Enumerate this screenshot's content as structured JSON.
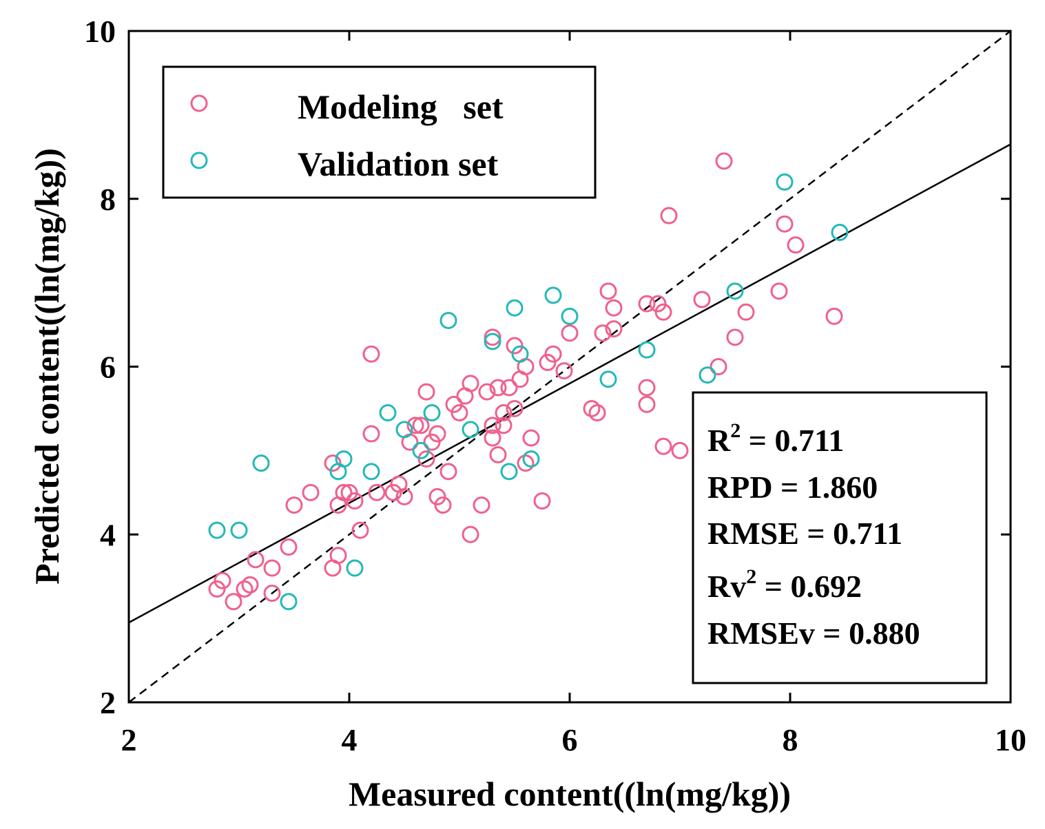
{
  "chart_data": {
    "type": "scatter",
    "title": "",
    "xlabel": "Measured content((ln(mg/kg))",
    "ylabel": "Predicted content((ln(mg/kg))",
    "xlim": [
      2,
      10
    ],
    "ylim": [
      2,
      10
    ],
    "xticks": [
      2,
      4,
      6,
      8,
      10
    ],
    "yticks": [
      2,
      4,
      6,
      8,
      10
    ],
    "grid": false,
    "legend_position": "top-left",
    "series": [
      {
        "name": "Modeling   set",
        "color": "#f0608c",
        "points": [
          [
            2.8,
            3.35
          ],
          [
            2.85,
            3.45
          ],
          [
            2.95,
            3.2
          ],
          [
            3.05,
            3.35
          ],
          [
            3.1,
            3.4
          ],
          [
            3.15,
            3.7
          ],
          [
            3.3,
            3.6
          ],
          [
            3.3,
            3.3
          ],
          [
            3.45,
            3.85
          ],
          [
            3.5,
            4.35
          ],
          [
            3.65,
            4.5
          ],
          [
            3.85,
            4.85
          ],
          [
            3.85,
            3.6
          ],
          [
            3.9,
            3.75
          ],
          [
            3.9,
            4.35
          ],
          [
            3.95,
            4.5
          ],
          [
            4.0,
            4.5
          ],
          [
            4.05,
            4.4
          ],
          [
            4.1,
            4.05
          ],
          [
            4.2,
            5.2
          ],
          [
            4.2,
            6.15
          ],
          [
            4.25,
            4.5
          ],
          [
            4.4,
            4.5
          ],
          [
            4.45,
            4.6
          ],
          [
            4.5,
            4.45
          ],
          [
            4.55,
            5.1
          ],
          [
            4.6,
            5.3
          ],
          [
            4.65,
            5.3
          ],
          [
            4.7,
            5.7
          ],
          [
            4.7,
            4.9
          ],
          [
            4.75,
            5.1
          ],
          [
            4.8,
            5.2
          ],
          [
            4.8,
            4.45
          ],
          [
            4.85,
            4.35
          ],
          [
            4.9,
            4.75
          ],
          [
            4.95,
            5.55
          ],
          [
            5.0,
            5.45
          ],
          [
            5.05,
            5.65
          ],
          [
            5.1,
            5.8
          ],
          [
            5.1,
            4.0
          ],
          [
            5.2,
            4.35
          ],
          [
            5.25,
            5.7
          ],
          [
            5.3,
            5.15
          ],
          [
            5.3,
            5.3
          ],
          [
            5.3,
            6.35
          ],
          [
            5.35,
            4.95
          ],
          [
            5.35,
            5.75
          ],
          [
            5.4,
            5.45
          ],
          [
            5.4,
            5.3
          ],
          [
            5.45,
            5.75
          ],
          [
            5.5,
            5.5
          ],
          [
            5.5,
            6.25
          ],
          [
            5.55,
            5.85
          ],
          [
            5.6,
            4.85
          ],
          [
            5.6,
            6.0
          ],
          [
            5.65,
            5.15
          ],
          [
            5.75,
            4.4
          ],
          [
            5.8,
            6.05
          ],
          [
            5.85,
            6.15
          ],
          [
            5.95,
            5.95
          ],
          [
            6.0,
            6.4
          ],
          [
            6.2,
            5.5
          ],
          [
            6.25,
            5.45
          ],
          [
            6.3,
            6.4
          ],
          [
            6.35,
            6.9
          ],
          [
            6.4,
            6.7
          ],
          [
            6.4,
            6.45
          ],
          [
            6.7,
            5.55
          ],
          [
            6.7,
            5.75
          ],
          [
            6.7,
            6.75
          ],
          [
            6.8,
            6.75
          ],
          [
            6.85,
            6.65
          ],
          [
            6.85,
            5.05
          ],
          [
            6.9,
            7.8
          ],
          [
            7.0,
            5.0
          ],
          [
            7.2,
            6.8
          ],
          [
            7.35,
            6.0
          ],
          [
            7.4,
            8.45
          ],
          [
            7.5,
            6.35
          ],
          [
            7.6,
            6.65
          ],
          [
            7.9,
            6.9
          ],
          [
            7.95,
            7.7
          ],
          [
            8.05,
            7.45
          ],
          [
            8.4,
            6.6
          ]
        ]
      },
      {
        "name": "Validation set",
        "color": "#23b8b8",
        "points": [
          [
            2.8,
            4.05
          ],
          [
            3.0,
            4.05
          ],
          [
            3.2,
            4.85
          ],
          [
            3.45,
            3.2
          ],
          [
            3.9,
            4.75
          ],
          [
            3.95,
            4.9
          ],
          [
            4.05,
            3.6
          ],
          [
            4.2,
            4.75
          ],
          [
            4.35,
            5.45
          ],
          [
            4.5,
            5.25
          ],
          [
            4.65,
            5.0
          ],
          [
            4.75,
            5.45
          ],
          [
            4.9,
            6.55
          ],
          [
            5.1,
            5.25
          ],
          [
            5.3,
            6.3
          ],
          [
            5.45,
            4.75
          ],
          [
            5.5,
            6.7
          ],
          [
            5.55,
            6.15
          ],
          [
            5.65,
            4.9
          ],
          [
            5.85,
            6.85
          ],
          [
            6.0,
            6.6
          ],
          [
            6.35,
            5.85
          ],
          [
            6.7,
            6.2
          ],
          [
            7.25,
            5.9
          ],
          [
            7.5,
            6.9
          ],
          [
            7.95,
            8.2
          ],
          [
            8.45,
            7.6
          ]
        ]
      }
    ],
    "lines": [
      {
        "name": "fit line",
        "style": "solid",
        "x": [
          2,
          10
        ],
        "y": [
          2.95,
          8.65
        ]
      },
      {
        "name": "1:1 line",
        "style": "dashed",
        "x": [
          2,
          10
        ],
        "y": [
          2,
          10
        ]
      }
    ],
    "stats": [
      {
        "label": "R",
        "sup": "2",
        "value": " = 0.711"
      },
      {
        "label": "RPD",
        "sup": "",
        "value": " = 1.860"
      },
      {
        "label": "RMSE",
        "sup": "",
        "value": " = 0.711"
      },
      {
        "label": "Rv",
        "sup": "2",
        "value": " = 0.692"
      },
      {
        "label": "RMSEv",
        "sup": "",
        "value": " = 0.880"
      }
    ]
  }
}
